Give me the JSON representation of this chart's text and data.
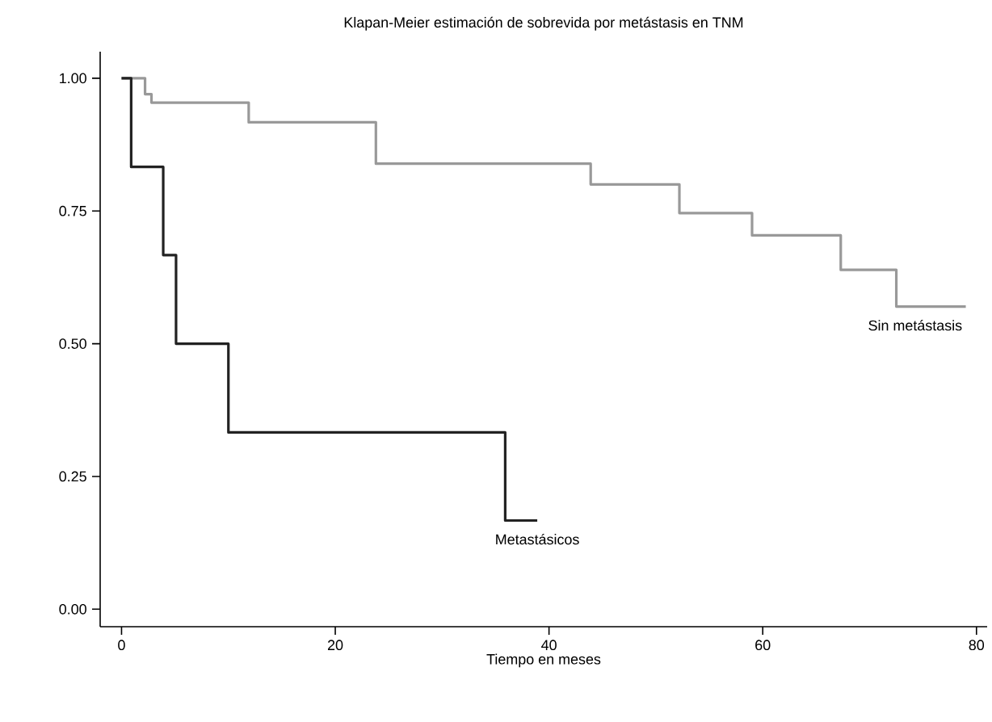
{
  "chart_data": {
    "type": "step",
    "title": "Klapan-Meier estimación de sobrevida por metástasis en TNM",
    "xlabel": "Tiempo en meses",
    "series": [
      {
        "name": "Sin metástasis",
        "color": "#999999",
        "x": [
          0,
          2.2,
          2.8,
          11.9,
          23.8,
          43.9,
          52.2,
          59,
          67.3,
          72.5,
          79
        ],
        "values": [
          1,
          0.97,
          0.954,
          0.917,
          0.839,
          0.8,
          0.746,
          0.704,
          0.639,
          0.57,
          0.57
        ]
      },
      {
        "name": "Metastásicos",
        "color": "#222222",
        "x": [
          0,
          0.9,
          3.9,
          5.1,
          10,
          35.9,
          38.9
        ],
        "values": [
          1,
          0.833,
          0.667,
          0.5,
          0.333,
          0.167,
          0.167
        ]
      }
    ],
    "xlim": [
      -2,
      81
    ],
    "ylim": [
      -0.033,
      1.05
    ],
    "xticks": [
      0,
      20,
      40,
      60,
      80
    ],
    "yticks": [
      {
        "value": 0,
        "label": "0.00"
      },
      {
        "value": 0.25,
        "label": "0.25"
      },
      {
        "value": 0.5,
        "label": "0.50"
      },
      {
        "value": 0.75,
        "label": "0.75"
      },
      {
        "value": 1,
        "label": "1.00"
      }
    ]
  }
}
